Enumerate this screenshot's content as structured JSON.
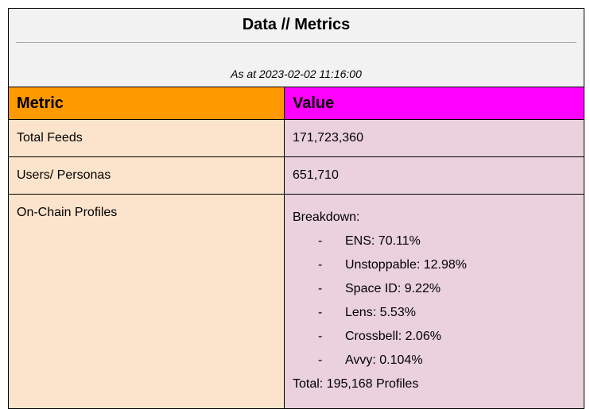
{
  "header": {
    "title": "Data // Metrics",
    "as_at": "As at 2023-02-02 11:16:00"
  },
  "table": {
    "columns": [
      "Metric",
      "Value"
    ],
    "rows": [
      {
        "metric": "Total Feeds",
        "value": "171,723,360"
      },
      {
        "metric": "Users/ Personas",
        "value": "651,710"
      },
      {
        "metric": "On-Chain Profiles",
        "breakdown_label": "Breakdown:",
        "items": [
          "ENS: 70.11%",
          "Unstoppable: 12.98%",
          "Space ID: 9.22%",
          "Lens: 5.53%",
          "Crossbell: 2.06%",
          "Avvy: 0.104%"
        ],
        "total": "Total: 195,168 Profiles"
      }
    ]
  },
  "colors": {
    "metric_header": "#ff9900",
    "value_header": "#ff00ff",
    "metric_cell": "#fce4cc",
    "value_cell": "#ead1dc"
  }
}
